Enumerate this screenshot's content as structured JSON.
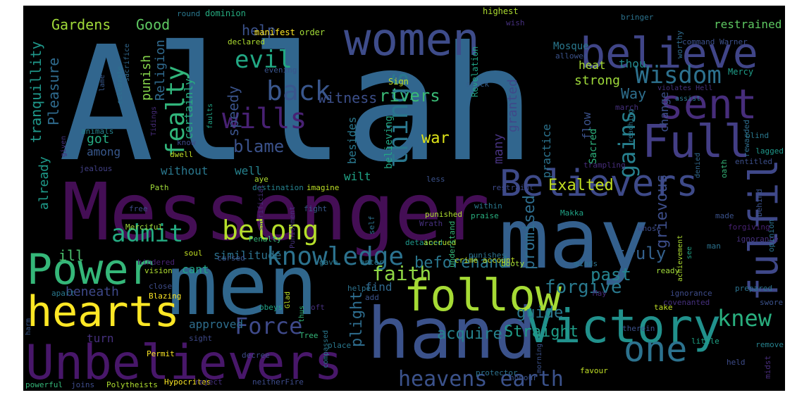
{
  "colors": {
    "background": "#000000",
    "page": "#ffffff"
  },
  "words": [
    {
      "text": "Allah",
      "color": "#31668e"
    },
    {
      "text": "Messenger",
      "color": "#440e55"
    },
    {
      "text": "may",
      "color": "#34608d"
    },
    {
      "text": "men",
      "color": "#30678d"
    },
    {
      "text": "hand",
      "color": "#3b528b"
    },
    {
      "text": "Unbelievers",
      "color": "#48176a"
    },
    {
      "text": "Victory",
      "color": "#21918c"
    },
    {
      "text": "follow",
      "color": "#a6db35"
    },
    {
      "text": "women",
      "color": "#3e4c8a"
    },
    {
      "text": "believe",
      "color": "#404588"
    },
    {
      "text": "Power",
      "color": "#35b779"
    },
    {
      "text": "hearts",
      "color": "#fde725"
    },
    {
      "text": "Believers",
      "color": "#3e4a89"
    },
    {
      "text": "Full",
      "color": "#433e85"
    },
    {
      "text": "sent",
      "color": "#472d7b"
    },
    {
      "text": "fulfil",
      "color": "#3f4889"
    },
    {
      "text": "one",
      "color": "#2c728e"
    },
    {
      "text": "knowledge",
      "color": "#2c728e"
    },
    {
      "text": "belong",
      "color": "#b5de2b"
    },
    {
      "text": "admit",
      "color": "#25ab82"
    },
    {
      "text": "Force",
      "color": "#3e4989"
    },
    {
      "text": "heavens earth",
      "color": "#3b528b"
    },
    {
      "text": "fealty",
      "color": "#31b57b"
    },
    {
      "text": "wills",
      "color": "#482173"
    },
    {
      "text": "back",
      "color": "#39568c"
    },
    {
      "text": "evil",
      "color": "#22a884"
    },
    {
      "text": "things",
      "color": "#2a778e"
    },
    {
      "text": "Wisdom",
      "color": "#2d718e"
    },
    {
      "text": "gains",
      "color": "#27808e"
    },
    {
      "text": "knew",
      "color": "#29af7f"
    },
    {
      "text": "faith",
      "color": "#8fd744"
    },
    {
      "text": "forgive",
      "color": "#29798e"
    },
    {
      "text": "past",
      "color": "#25838e"
    },
    {
      "text": "truly",
      "color": "#34618d"
    },
    {
      "text": "rivers",
      "color": "#3aba76"
    },
    {
      "text": "Exalted",
      "color": "#c2df23"
    },
    {
      "text": "grievous",
      "color": "#3d4e8a"
    },
    {
      "text": "war",
      "color": "#dde318"
    },
    {
      "text": "blame",
      "color": "#3b528b"
    },
    {
      "text": "guide",
      "color": "#2a788e"
    },
    {
      "text": "Straight",
      "color": "#1f9e89"
    },
    {
      "text": "acquire",
      "color": "#26828e"
    },
    {
      "text": "beforehand",
      "color": "#2a778e"
    },
    {
      "text": "plight",
      "color": "#2e6d8e"
    },
    {
      "text": "promised",
      "color": "#2e6e8e"
    },
    {
      "text": "witness",
      "color": "#3c4f8a"
    },
    {
      "text": "speedy",
      "color": "#3a538b"
    },
    {
      "text": "help",
      "color": "#3b528b"
    },
    {
      "text": "Good",
      "color": "#5ec962"
    },
    {
      "text": "Gardens",
      "color": "#a0da39"
    },
    {
      "text": "Pleasure",
      "color": "#2f6b8e"
    },
    {
      "text": "tranquillity",
      "color": "#1f988b"
    },
    {
      "text": "Religion",
      "color": "#306a8e"
    },
    {
      "text": "punish",
      "color": "#84d44b"
    },
    {
      "text": "certainly",
      "color": "#28ae80"
    },
    {
      "text": "got",
      "color": "#25ab82"
    },
    {
      "text": "among",
      "color": "#38588c"
    },
    {
      "text": "already",
      "color": "#1e9b8a"
    },
    {
      "text": "ill",
      "color": "#4ac16d"
    },
    {
      "text": "beneath",
      "color": "#3e4989"
    },
    {
      "text": "cant",
      "color": "#20a386"
    },
    {
      "text": "similitude",
      "color": "#2c728e"
    },
    {
      "text": "without",
      "color": "#2a788e"
    },
    {
      "text": "well",
      "color": "#26828e"
    },
    {
      "text": "wilt",
      "color": "#20a386"
    },
    {
      "text": "approved",
      "color": "#2e6e8e"
    },
    {
      "text": "turn",
      "color": "#46307e"
    },
    {
      "text": "find",
      "color": "#31688e"
    },
    {
      "text": "besides",
      "color": "#2a788e"
    },
    {
      "text": "believing",
      "color": "#22a884"
    },
    {
      "text": "many",
      "color": "#46327e"
    },
    {
      "text": "granted",
      "color": "#3f4889"
    },
    {
      "text": "practice",
      "color": "#2c738e"
    },
    {
      "text": "flow",
      "color": "#3b528b"
    },
    {
      "text": "Way",
      "color": "#2e6f8e"
    },
    {
      "text": "change",
      "color": "#3c508b"
    },
    {
      "text": "Sacred",
      "color": "#2db27d"
    },
    {
      "text": "strong",
      "color": "#9fda3a"
    },
    {
      "text": "heat",
      "color": "#a8db34"
    },
    {
      "text": "thou",
      "color": "#23898e"
    },
    {
      "text": "restrained",
      "color": "#5ec962"
    },
    {
      "text": "Mosque",
      "color": "#2a788e"
    },
    {
      "text": "Mercy",
      "color": "#1f9e89"
    },
    {
      "text": "Revelation",
      "color": "#20a386"
    },
    {
      "text": "Sign",
      "color": "#bddf26"
    },
    {
      "text": "highest",
      "color": "#addc30"
    },
    {
      "text": "manifest",
      "color": "#fde725"
    },
    {
      "text": "order",
      "color": "#a2da37"
    },
    {
      "text": "dominion",
      "color": "#26ad81"
    },
    {
      "text": "round",
      "color": "#2a788e"
    },
    {
      "text": "sacrifice",
      "color": "#31688e"
    },
    {
      "text": "lame",
      "color": "#38588c"
    },
    {
      "text": "celebrate",
      "color": "#2d708e"
    },
    {
      "text": "given",
      "color": "#46327e"
    },
    {
      "text": "jealous",
      "color": "#424086"
    },
    {
      "text": "animals",
      "color": "#26828e"
    },
    {
      "text": "Tidings",
      "color": "#472c7a"
    },
    {
      "text": "dwell",
      "color": "#c0df25"
    },
    {
      "text": "know",
      "color": "#3e4989"
    },
    {
      "text": "faults",
      "color": "#20a386"
    },
    {
      "text": "evening",
      "color": "#3a548c"
    },
    {
      "text": "declared",
      "color": "#addc30"
    },
    {
      "text": "stick",
      "color": "#355f8d"
    },
    {
      "text": "wish",
      "color": "#46307e"
    },
    {
      "text": "bringer",
      "color": "#2c738e"
    },
    {
      "text": "worthy",
      "color": "#2f6c8e"
    },
    {
      "text": "allowed",
      "color": "#3b528b"
    },
    {
      "text": "command Warner",
      "color": "#3c508b"
    },
    {
      "text": "march",
      "color": "#46307e"
    },
    {
      "text": "violates Hell",
      "color": "#46327e"
    },
    {
      "text": "assist",
      "color": "#2a788e"
    },
    {
      "text": "rewarded",
      "color": "#2e6d8e"
    },
    {
      "text": "blind",
      "color": "#2a788e"
    },
    {
      "text": "lagged",
      "color": "#1f988b"
    },
    {
      "text": "oath",
      "color": "#35b779"
    },
    {
      "text": "trampling",
      "color": "#472d7b"
    },
    {
      "text": "reaching",
      "color": "#2a788e"
    },
    {
      "text": "denied",
      "color": "#31688e"
    },
    {
      "text": "entitled",
      "color": "#3c4f8a"
    },
    {
      "text": "behind",
      "color": "#3b528b"
    },
    {
      "text": "forgiving",
      "color": "#482173"
    },
    {
      "text": "opinion",
      "color": "#2c728e"
    },
    {
      "text": "Path",
      "color": "#a0da39"
    },
    {
      "text": "aye",
      "color": "#addc30"
    },
    {
      "text": "destination",
      "color": "#26828e"
    },
    {
      "text": "imagine",
      "color": "#bddf26"
    },
    {
      "text": "less",
      "color": "#3b528b"
    },
    {
      "text": "restraint",
      "color": "#3e4989"
    },
    {
      "text": "sacrificial",
      "color": "#472c7a"
    },
    {
      "text": "Punishment",
      "color": "#46307e"
    },
    {
      "text": "Merciful",
      "color": "#a0da39"
    },
    {
      "text": "free",
      "color": "#3e4c8a"
    },
    {
      "text": "fight",
      "color": "#38588c"
    },
    {
      "text": "praise",
      "color": "#29af7f"
    },
    {
      "text": "within",
      "color": "#2a788e"
    },
    {
      "text": "punished",
      "color": "#addc30"
    },
    {
      "text": "self",
      "color": "#2c728e"
    },
    {
      "text": "Makka",
      "color": "#20a386"
    },
    {
      "text": "made",
      "color": "#3b528b"
    },
    {
      "text": "Wrath",
      "color": "#46307e"
    },
    {
      "text": "Penalty",
      "color": "#35b779"
    },
    {
      "text": "soul",
      "color": "#c2df23"
    },
    {
      "text": "whose",
      "color": "#3e4c8a"
    },
    {
      "text": "ignorance",
      "color": "#46307e"
    },
    {
      "text": "see",
      "color": "#20a386"
    },
    {
      "text": "man",
      "color": "#2c728e"
    },
    {
      "text": "enter",
      "color": "#2a788e"
    },
    {
      "text": "detained",
      "color": "#1f988b"
    },
    {
      "text": "accrued",
      "color": "#addc30"
    },
    {
      "text": "understand",
      "color": "#35b779"
    },
    {
      "text": "booty",
      "color": "#a0da39"
    },
    {
      "text": "minds",
      "color": "#2c728e"
    },
    {
      "text": "hindered",
      "color": "#482173"
    },
    {
      "text": "cursed",
      "color": "#3b528b"
    },
    {
      "text": "gave",
      "color": "#2a788e"
    },
    {
      "text": "crime account",
      "color": "#c0df25"
    },
    {
      "text": "punishes",
      "color": "#2c728e"
    },
    {
      "text": "May",
      "color": "#472c7a"
    },
    {
      "text": "ready",
      "color": "#a0da39"
    },
    {
      "text": "vision",
      "color": "#addc30"
    },
    {
      "text": "close",
      "color": "#3e4c8a"
    },
    {
      "text": "Blazing",
      "color": "#fde725"
    },
    {
      "text": "apart",
      "color": "#2a788e"
    },
    {
      "text": "Glad",
      "color": "#bddf26"
    },
    {
      "text": "helper",
      "color": "#2c728e"
    },
    {
      "text": "add",
      "color": "#3b528b"
    },
    {
      "text": "oft",
      "color": "#46307e"
    },
    {
      "text": "obeys",
      "color": "#20a386"
    },
    {
      "text": "thus",
      "color": "#35b779"
    },
    {
      "text": "ignorance",
      "color": "#3e4c8a"
    },
    {
      "text": "prepared",
      "color": "#2c728e"
    },
    {
      "text": "achievement",
      "color": "#addc30"
    },
    {
      "text": "take",
      "color": "#c0df25"
    },
    {
      "text": "covenanted",
      "color": "#46307e"
    },
    {
      "text": "swore",
      "color": "#3b528b"
    },
    {
      "text": "harm",
      "color": "#38588c"
    },
    {
      "text": "sight",
      "color": "#3e4989"
    },
    {
      "text": "Permit",
      "color": "#fde725"
    },
    {
      "text": "Tree",
      "color": "#35b779"
    },
    {
      "text": "place",
      "color": "#2a788e"
    },
    {
      "text": "little",
      "color": "#20a386"
    },
    {
      "text": "therein",
      "color": "#3b528b"
    },
    {
      "text": "remove",
      "color": "#26828e"
    },
    {
      "text": "held",
      "color": "#3e4c8a"
    },
    {
      "text": "midst",
      "color": "#472c7a"
    },
    {
      "text": "decree",
      "color": "#3e4989"
    },
    {
      "text": "compassed",
      "color": "#2a788e"
    },
    {
      "text": "protector",
      "color": "#2c728e"
    },
    {
      "text": "honour",
      "color": "#3b528b"
    },
    {
      "text": "morning",
      "color": "#3b528b"
    },
    {
      "text": "favour",
      "color": "#c0df25"
    },
    {
      "text": "powerful",
      "color": "#35b779"
    },
    {
      "text": "joins",
      "color": "#3e4c8a"
    },
    {
      "text": "Polytheists",
      "color": "#addc30"
    },
    {
      "text": "Hypocrites",
      "color": "#fde725"
    },
    {
      "text": "reject",
      "color": "#46307e"
    },
    {
      "text": "neitherFire",
      "color": "#3e4c8a"
    }
  ]
}
